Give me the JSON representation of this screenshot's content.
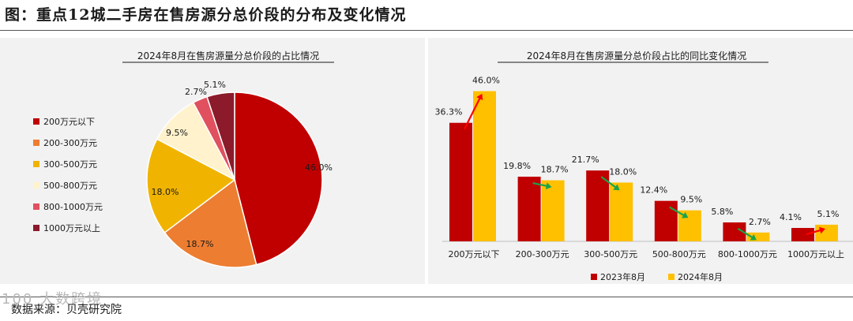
{
  "page": {
    "figure_title": "图：重点12城二手房在售房源分总价段的分布及变化情况",
    "source": "数据来源：贝壳研究院",
    "watermark": "100 大数跨境"
  },
  "chart_data": [
    {
      "type": "pie",
      "title": "2024年8月在售房源量分总价段的占比情况",
      "categories": [
        "200万元以下",
        "200-300万元",
        "300-500万元",
        "500-800万元",
        "800-1000万元",
        "1000万元以上"
      ],
      "values": [
        46.0,
        18.7,
        18.0,
        9.5,
        2.7,
        5.1
      ],
      "labels": [
        "46.0%",
        "18.7%",
        "18.0%",
        "9.5%",
        "2.7%",
        "5.1%"
      ],
      "colors": [
        "#c00000",
        "#ed7d31",
        "#f0b400",
        "#fff2cc",
        "#e0505f",
        "#8b1a2a"
      ],
      "legend_position": "left"
    },
    {
      "type": "bar",
      "title": "2024年8月在售房源量分总价段占比的同比变化情况",
      "categories": [
        "200万元以下",
        "200-300万元",
        "300-500万元",
        "500-800万元",
        "800-1000万元",
        "1000万元以上"
      ],
      "series": [
        {
          "name": "2023年8月",
          "values": [
            36.3,
            19.8,
            21.7,
            12.4,
            5.8,
            4.1
          ],
          "labels": [
            "36.3%",
            "19.8%",
            "21.7%",
            "12.4%",
            "5.8%",
            "4.1%"
          ],
          "color": "#c00000"
        },
        {
          "name": "2024年8月",
          "values": [
            46.0,
            18.7,
            18.0,
            9.5,
            2.7,
            5.1
          ],
          "labels": [
            "46.0%",
            "18.7%",
            "18.0%",
            "9.5%",
            "2.7%",
            "5.1%"
          ],
          "color": "#ffc000"
        }
      ],
      "ylim": [
        0,
        50
      ],
      "grid": false,
      "legend_position": "bottom",
      "trend_arrows": [
        "up",
        "down",
        "down",
        "down",
        "down",
        "up"
      ],
      "arrow_colors": {
        "up": "#ff0000",
        "down": "#1aa34a"
      }
    }
  ]
}
